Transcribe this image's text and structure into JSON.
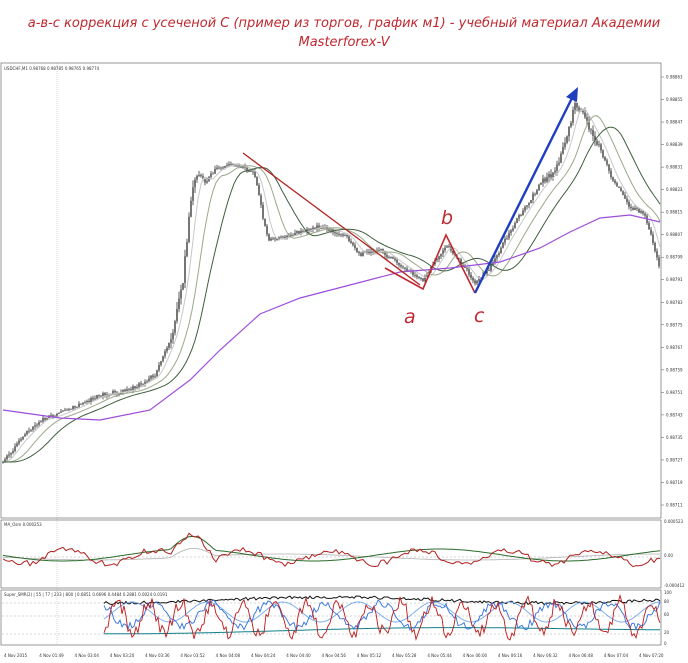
{
  "title": {
    "line1": "a-в-с коррекция с усеченой С (пример из торгов, график м1) - учебный материал Академии",
    "line2": "Masterforex-V"
  },
  "main_pane": {
    "header": "USDCHF,M1  0.98768 0.98785 0.98765 0.98774",
    "price_ticks": [
      "0.98863",
      "0.98855",
      "0.98847",
      "0.98839",
      "0.98831",
      "0.98823",
      "0.98815",
      "0.98807",
      "0.98799",
      "0.98791",
      "0.98783",
      "0.98775",
      "0.98767",
      "0.98759",
      "0.98751",
      "0.98743",
      "0.98735",
      "0.98727",
      "0.98719",
      "0.98711"
    ],
    "wave_labels": {
      "a": "a",
      "b": "b",
      "c": "c"
    }
  },
  "osc_pane": {
    "header": "MA_Osm  0.000253",
    "ticks": [
      "0.000523",
      "0.00",
      "-0.000412"
    ]
  },
  "stoch_pane": {
    "header": "Super_SMR(2) | 55 | 77 | 233 | 800 |  0.6851 0.6696  0.4484  0.2881  0.0024  0.0191",
    "ticks": [
      "100",
      "80",
      "60",
      "20",
      "0"
    ]
  },
  "time_axis": [
    "4 Nov 2015",
    "4 Nov 01:49",
    "4 Nov 03:04",
    "4 Nov 03:20",
    "4 Nov 03:36",
    "4 Nov 03:52",
    "4 Nov 04:08",
    "4 Nov 04:24",
    "4 Nov 04:40",
    "4 Nov 04:56",
    "4 Nov 05:12",
    "4 Nov 05:28",
    "4 Nov 05:44",
    "4 Nov 06:00",
    "4 Nov 06:16",
    "4 Nov 06:32",
    "4 Nov 06:48",
    "4 Nov 07:04",
    "4 Nov 07:20"
  ],
  "colors": {
    "title": "#c0282f",
    "candles": "#1a1a1a",
    "ma_fast": "#c8c8c8",
    "ma_mid": "#9aa88a",
    "ma_slow": "#3f5e3f",
    "ma_long": "#9d4ddb",
    "decline_line": "#b32222",
    "abc_line": "#c0282f",
    "impulse_arrow": "#1f3fbf",
    "osc_red": "#b02020",
    "osc_green": "#2c6b2c",
    "stoch_red": "#c01818",
    "stoch_blue": "#3070e0",
    "stoch_lightblue": "#70a8f0",
    "stoch_black": "#111111",
    "stoch_teal": "#10808a"
  },
  "chart_data": {
    "type": "line",
    "symbol": "USDCHF",
    "timeframe": "M1",
    "x": [
      "4 Nov 01:49",
      "4 Nov 03:04",
      "4 Nov 03:36",
      "4 Nov 04:08",
      "4 Nov 04:24",
      "4 Nov 04:40",
      "4 Nov 05:12",
      "4 Nov 05:28",
      "4 Nov 05:44",
      "4 Nov 06:00",
      "4 Nov 06:16",
      "4 Nov 06:32",
      "4 Nov 06:48",
      "4 Nov 07:04",
      "4 Nov 07:20"
    ],
    "series": [
      {
        "values": [
          0.9873,
          0.98736,
          0.98745,
          0.98775,
          0.9883,
          0.98835,
          0.9881,
          0.98805,
          0.988,
          0.98795,
          0.9879,
          0.98808,
          0.9885,
          0.9883,
          0.988
        ]
      }
    ],
    "annotations": [
      {
        "label": "a",
        "price": 0.98787
      },
      {
        "label": "b",
        "price": 0.98803
      },
      {
        "label": "c",
        "price": 0.98785
      }
    ],
    "ylim": [
      0.98711,
      0.98863
    ]
  }
}
